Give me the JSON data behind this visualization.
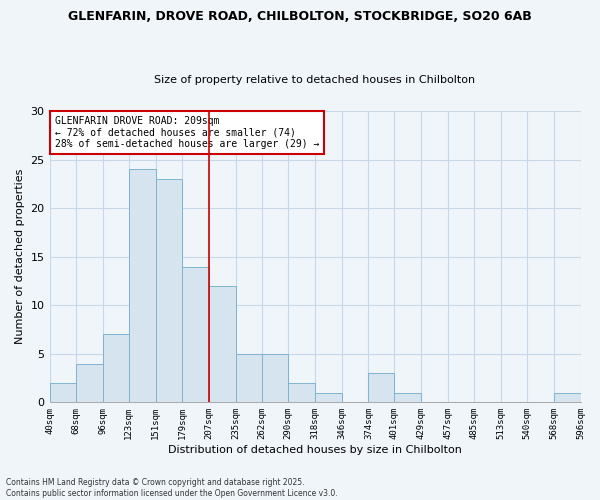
{
  "title": "GLENFARIN, DROVE ROAD, CHILBOLTON, STOCKBRIDGE, SO20 6AB",
  "subtitle": "Size of property relative to detached houses in Chilbolton",
  "xlabel": "Distribution of detached houses by size in Chilbolton",
  "ylabel": "Number of detached properties",
  "bar_color": "#d6e4f0",
  "bar_edge_color": "#7fb3d3",
  "bg_color": "#f0f5fa",
  "grid_color": "#c5d8e8",
  "vline_x": 207,
  "vline_color": "#cc0000",
  "annotation_title": "GLENFARIN DROVE ROAD: 209sqm",
  "annotation_line1": "← 72% of detached houses are smaller (74)",
  "annotation_line2": "28% of semi-detached houses are larger (29) →",
  "footnote1": "Contains HM Land Registry data © Crown copyright and database right 2025.",
  "footnote2": "Contains public sector information licensed under the Open Government Licence v3.0.",
  "bins": [
    40,
    68,
    96,
    123,
    151,
    179,
    207,
    235,
    262,
    290,
    318,
    346,
    374,
    401,
    429,
    457,
    485,
    513,
    540,
    568,
    596
  ],
  "counts": [
    2,
    4,
    7,
    24,
    23,
    14,
    12,
    5,
    5,
    2,
    1,
    0,
    3,
    1,
    0,
    0,
    0,
    0,
    0,
    1
  ],
  "tick_labels": [
    "40sqm",
    "68sqm",
    "96sqm",
    "123sqm",
    "151sqm",
    "179sqm",
    "207sqm",
    "235sqm",
    "262sqm",
    "290sqm",
    "318sqm",
    "346sqm",
    "374sqm",
    "401sqm",
    "429sqm",
    "457sqm",
    "485sqm",
    "513sqm",
    "540sqm",
    "568sqm",
    "596sqm"
  ],
  "ylim": [
    0,
    30
  ],
  "yticks": [
    0,
    5,
    10,
    15,
    20,
    25,
    30
  ]
}
